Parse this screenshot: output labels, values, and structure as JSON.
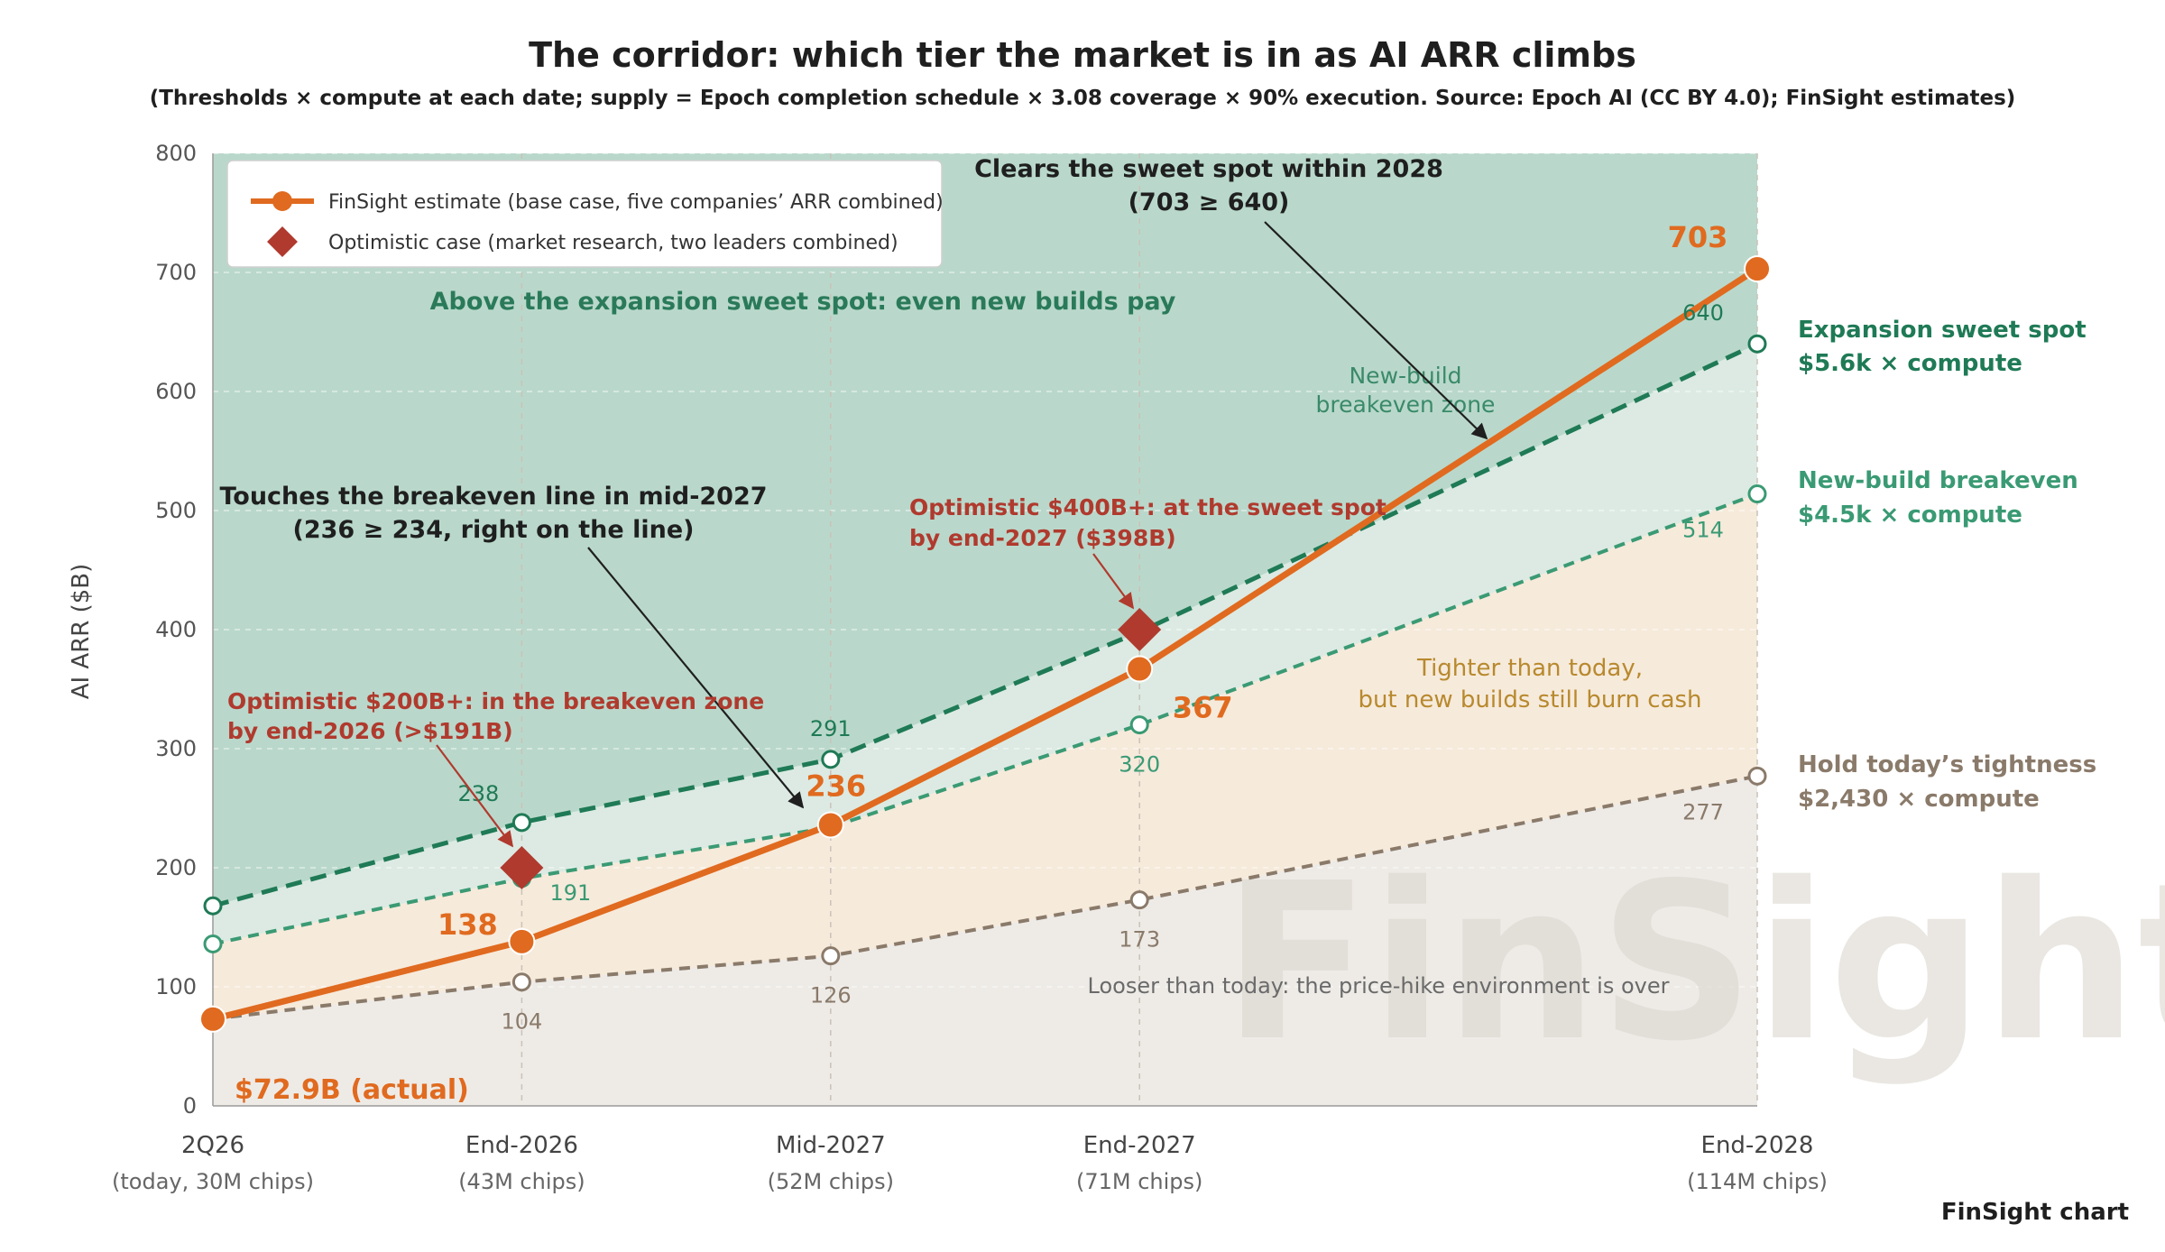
{
  "chart_data": {
    "type": "line",
    "title": "The corridor: which tier the market is in as AI ARR climbs",
    "subtitle": "(Thresholds × compute at each date; supply = Epoch completion schedule × 3.08 coverage × 90% execution. Source: Epoch AI (CC BY 4.0); FinSight estimates)",
    "ylabel": "AI ARR ($B)",
    "xlabel": "",
    "ylim": [
      0,
      800
    ],
    "yticks": [
      0,
      100,
      200,
      300,
      400,
      500,
      600,
      700,
      800
    ],
    "grid": true,
    "legend_position": "top-left",
    "x": [
      "2Q26",
      "End-2026",
      "Mid-2027",
      "End-2027",
      "End-2028"
    ],
    "x_sublabels": [
      "(today, 30M chips)",
      "(43M chips)",
      "(52M chips)",
      "(71M chips)",
      "(114M chips)"
    ],
    "x_positions": [
      0,
      1,
      2,
      3,
      5
    ],
    "series": [
      {
        "name": "FinSight estimate (base case, five companies’ ARR combined)",
        "color": "#e06a1f",
        "values": [
          72.9,
          138,
          236,
          367,
          703
        ],
        "value_labels": [
          "",
          "138",
          "236",
          "367",
          "703"
        ]
      },
      {
        "name": "Expansion sweet spot",
        "color": "#1f7a56",
        "values": [
          168,
          238,
          291,
          398,
          640
        ],
        "value_labels": [
          "",
          "238",
          "291",
          "",
          "640"
        ]
      },
      {
        "name": "New-build breakeven",
        "color": "#3a9a74",
        "values": [
          136,
          191,
          234,
          320,
          514
        ],
        "value_labels": [
          "",
          "191",
          "",
          "320",
          "514"
        ]
      },
      {
        "name": "Hold today’s tightness",
        "color": "#8a7a6a",
        "values": [
          73,
          104,
          126,
          173,
          277
        ],
        "value_labels": [
          "",
          "104",
          "126",
          "173",
          "277"
        ]
      }
    ],
    "optimistic": {
      "name": "Optimistic case (market research, two leaders combined)",
      "color": "#b03a2e",
      "points": [
        {
          "x": 1,
          "y": 200
        },
        {
          "x": 3,
          "y": 400
        }
      ]
    },
    "side_labels": [
      {
        "line1": "Expansion sweet spot",
        "line2": "$5.6k × compute",
        "color": "#1f7a56"
      },
      {
        "line1": "New-build breakeven",
        "line2": "$4.5k × compute",
        "color": "#3a9a74"
      },
      {
        "line1": "Hold today’s tightness",
        "line2": "$2,430 × compute",
        "color": "#8a7a6a"
      }
    ],
    "annotations": {
      "sweet_spot_title": "Clears the sweet spot within 2028",
      "sweet_spot_detail": "(703 ≥ 640)",
      "breakeven_title": "Touches the breakeven line in mid-2027",
      "breakeven_detail": "(236 ≥ 234, right on the line)",
      "opt400_line1": "Optimistic $400B+: at the sweet spot",
      "opt400_line2": "by end-2027 ($398B)",
      "opt200_line1": "Optimistic $200B+: in the breakeven zone",
      "opt200_line2": "by end-2026 (>$191B)",
      "actual_label": "$72.9B (actual)",
      "zone_top": "Above the expansion sweet spot: even new builds pay",
      "zone_newbuild_line1": "New-build",
      "zone_newbuild_line2": "breakeven zone",
      "zone_tighter_line1": "Tighter than today,",
      "zone_tighter_line2": "but new builds still burn cash",
      "zone_looser": "Looser than today: the price-hike environment is over"
    },
    "credit": "FinSight chart",
    "watermark": "FinSight"
  }
}
